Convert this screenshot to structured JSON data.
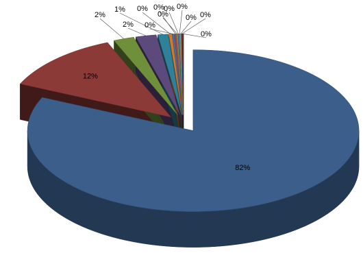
{
  "chart_data": {
    "type": "pie",
    "values": [
      82,
      12,
      2,
      2,
      1,
      0.3,
      0.2,
      0.2,
      0.1,
      0.1,
      0.1,
      0.1,
      0.1,
      0.1
    ],
    "value_labels": [
      "82%",
      "12%",
      "2%",
      "2%",
      "1%",
      "0%",
      "0%",
      "0%",
      "0%",
      "0%",
      "0%",
      "0%",
      "0%",
      "0%"
    ],
    "colors": [
      "#3b5e8b",
      "#8c3a38",
      "#6f8f3b",
      "#5d4a7c",
      "#2f8099",
      "#d07a30",
      "#4a6fa0",
      "#a04a48",
      "#86a84c",
      "#705a90",
      "#3e97b0",
      "#e08a40",
      "#2c4a70",
      "#7a2f2d"
    ],
    "exploded": true,
    "three_d": true
  }
}
